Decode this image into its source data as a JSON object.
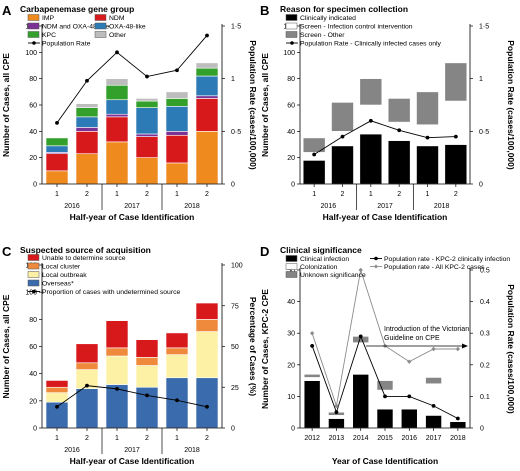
{
  "chart_data": [
    {
      "panel_letter": "A",
      "type": "bar",
      "stacked": true,
      "title": "Carbapenemase gene group",
      "xlabel": "Half-year of Case Identification",
      "ylabel": "Number of Cases, all CPE",
      "y2label": "Population Rate (cases/100,000)",
      "ylim": [
        0,
        120
      ],
      "y2lim": [
        0,
        1.5
      ],
      "y_ticks": [
        "0",
        "20",
        "40",
        "60",
        "80",
        "100",
        "120"
      ],
      "y2_ticks": [
        "0",
        "0·5",
        "1",
        "1·5"
      ],
      "categories": [
        "1",
        "2",
        "1",
        "2",
        "1",
        "2"
      ],
      "years": [
        "2016",
        "2017",
        "2018"
      ],
      "legend_position": "top-left",
      "series": [
        {
          "name": "IMP",
          "color": "#ef8a1f",
          "values": [
            10,
            23,
            32,
            20,
            16,
            40
          ]
        },
        {
          "name": "NDM",
          "color": "#d7191c",
          "values": [
            13,
            17,
            19,
            16,
            21,
            25
          ]
        },
        {
          "name": "NDM and OXA-48-like",
          "color": "#7b3294",
          "values": [
            1,
            3,
            2,
            2,
            3,
            2
          ]
        },
        {
          "name": "OXA-48-like",
          "color": "#2c7bb6",
          "values": [
            5,
            8,
            11,
            20,
            19,
            15
          ]
        },
        {
          "name": "KPC",
          "color": "#33a02c",
          "values": [
            6,
            7,
            11,
            5,
            6,
            6
          ]
        },
        {
          "name": "Other",
          "color": "#bdbdbd",
          "values": [
            0,
            3,
            5,
            2,
            5,
            4
          ]
        }
      ],
      "line": {
        "name": "Population Rate",
        "color": "#000000",
        "values": [
          0.58,
          0.98,
          1.25,
          1.02,
          1.08,
          1.41
        ]
      }
    },
    {
      "panel_letter": "B",
      "type": "bar",
      "stacked": true,
      "title": "Reason for specimen collection",
      "xlabel": "Half-year of Case Identification",
      "ylabel": "Number of Cases, all CPE",
      "y2label": "Population Rate (cases/100,000)",
      "ylim": [
        0,
        120
      ],
      "y2lim": [
        0,
        1.5
      ],
      "y_ticks": [
        "0",
        "20",
        "40",
        "60",
        "80",
        "100",
        "120"
      ],
      "y2_ticks": [
        "0",
        "0·5",
        "1",
        "1·5"
      ],
      "categories": [
        "1",
        "2",
        "1",
        "2",
        "1",
        "2"
      ],
      "years": [
        "2016",
        "2017",
        "2018"
      ],
      "legend_position": "top-left",
      "series": [
        {
          "name": "Clinically indicated",
          "color": "#000000",
          "values": [
            18,
            29,
            38,
            33,
            29,
            30
          ]
        },
        {
          "name": "Screen - Infection control intervention",
          "color": "#ffffff",
          "values": [
            6,
            11,
            22,
            14,
            16,
            33
          ]
        },
        {
          "name": "Screen - Other",
          "color": "#858585",
          "values": [
            11,
            22,
            20,
            18,
            25,
            29
          ]
        }
      ],
      "line": {
        "name": "Population Rate - Clinically infected cases only",
        "color": "#000000",
        "values": [
          0.28,
          0.45,
          0.6,
          0.51,
          0.44,
          0.45
        ]
      }
    },
    {
      "panel_letter": "C",
      "type": "bar",
      "stacked": true,
      "title": "Suspected source of acquisition",
      "xlabel": "Half-year of Case Identification",
      "ylabel": "Number of Cases, all CPE",
      "y2label": "Percentage of Cases (%)",
      "ylim": [
        0,
        120
      ],
      "y2lim": [
        0,
        100
      ],
      "y_ticks": [
        "0",
        "20",
        "40",
        "60",
        "80",
        "100",
        "120"
      ],
      "y2_ticks": [
        "0",
        "25",
        "50",
        "75",
        "100"
      ],
      "categories": [
        "1",
        "2",
        "1",
        "2",
        "1",
        "2"
      ],
      "years": [
        "2016",
        "2017",
        "2018"
      ],
      "legend_position": "top-left",
      "series": [
        {
          "name": "Overseas*",
          "color": "#3a6bad",
          "values": [
            19,
            29,
            32,
            30,
            37,
            37
          ]
        },
        {
          "name": "Local outbreak",
          "color": "#fdf1a5",
          "values": [
            7,
            14,
            21,
            16,
            17,
            34
          ]
        },
        {
          "name": "Local cluster",
          "color": "#ef8a3c",
          "values": [
            4,
            5,
            6,
            6,
            5,
            9
          ]
        },
        {
          "name": "Unable to determine source",
          "color": "#d7191c",
          "values": [
            5,
            14,
            20,
            13,
            11,
            12
          ]
        }
      ],
      "line": {
        "name": "Proportion of cases with undetermined source",
        "color": "#000000",
        "values": [
          13,
          26,
          24,
          20,
          17,
          13
        ]
      }
    },
    {
      "panel_letter": "D",
      "type": "bar",
      "stacked": true,
      "title": "Clinical significance",
      "xlabel": "Year of Case Identification",
      "ylabel": "Number of Cases, KPC-2 CPE",
      "y2label": "Population Rate (cases/100,000)",
      "ylim": [
        0,
        50
      ],
      "y2lim": [
        0,
        0.5
      ],
      "y_ticks": [
        "0",
        "10",
        "20",
        "30",
        "40",
        "50"
      ],
      "y2_ticks": [
        "0",
        "0.1",
        "0.2",
        "0.3",
        "0.4",
        "0.5"
      ],
      "categories": [
        "2012",
        "2013",
        "2014",
        "2015",
        "2016",
        "2017",
        "2018"
      ],
      "legend_position": "top-left",
      "annotation": "Introduction of the Victorian Guideline on CPE",
      "series": [
        {
          "name": "Clinical infection",
          "color": "#000000",
          "values": [
            15,
            3,
            17,
            6,
            6,
            4,
            2
          ]
        },
        {
          "name": "Colonization",
          "color": "#ffffff",
          "values": [
            1,
            1,
            10,
            6,
            7,
            10,
            14
          ]
        },
        {
          "name": "Unknown significance",
          "color": "#858585",
          "values": [
            1,
            1,
            2,
            3,
            0,
            2,
            0
          ]
        }
      ],
      "lines": [
        {
          "name": "Population rate - KPC-2 clinically infection",
          "color": "#000000",
          "marker": "circle",
          "values": [
            0.26,
            0.05,
            0.29,
            0.1,
            0.1,
            0.07,
            0.03
          ]
        },
        {
          "name": "Population rate - All KPC-2 cases",
          "color": "#8c8c8c",
          "marker": "diamond",
          "values": [
            0.3,
            0.07,
            0.5,
            0.26,
            0.21,
            0.25,
            0.25
          ]
        }
      ]
    }
  ]
}
